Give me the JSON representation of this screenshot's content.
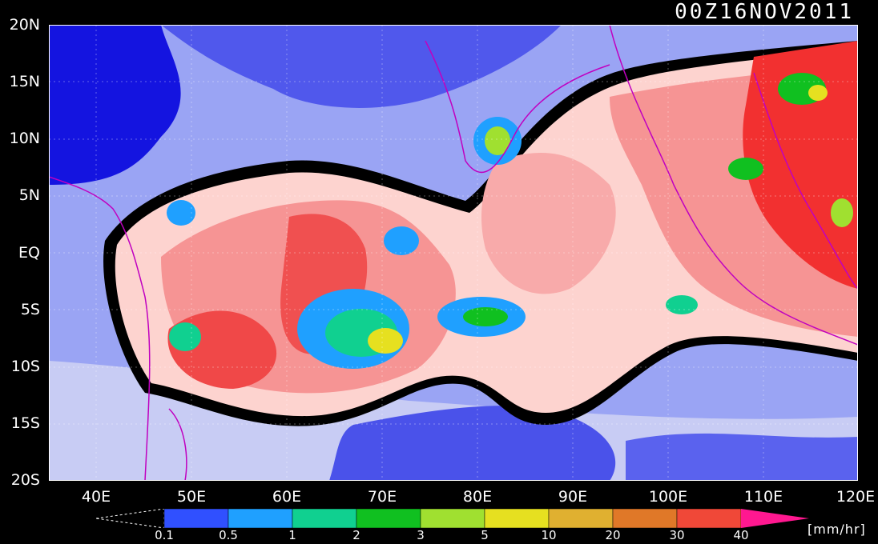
{
  "title": "00Z16NOV2011",
  "latitude_labels": [
    "20N",
    "15N",
    "10N",
    "5N",
    "EQ",
    "5S",
    "10S",
    "15S",
    "20S"
  ],
  "longitude_labels": [
    "40E",
    "50E",
    "60E",
    "70E",
    "80E",
    "90E",
    "100E",
    "110E",
    "120E"
  ],
  "colorbar": {
    "tick_labels": [
      "0.1",
      "0.5",
      "1",
      "2",
      "3",
      "5",
      "10",
      "20",
      "30",
      "40"
    ],
    "unit": "[mm/hr]",
    "colors": [
      "#3050ff",
      "#1fa0ff",
      "#10d090",
      "#10c020",
      "#a0e030",
      "#e6e020",
      "#e0b030",
      "#e07828",
      "#f04838",
      "#ff1890"
    ]
  },
  "map_colors": {
    "ocean_dry": "#1010e0",
    "low": "#6a78f0",
    "lowlight": "#c8ccf4",
    "zero_contour": "#000000",
    "rain_light": "#fdd0cc",
    "rain_mid": "#f69090",
    "rain_heavy": "#f04848",
    "coastline": "#c000c0"
  }
}
